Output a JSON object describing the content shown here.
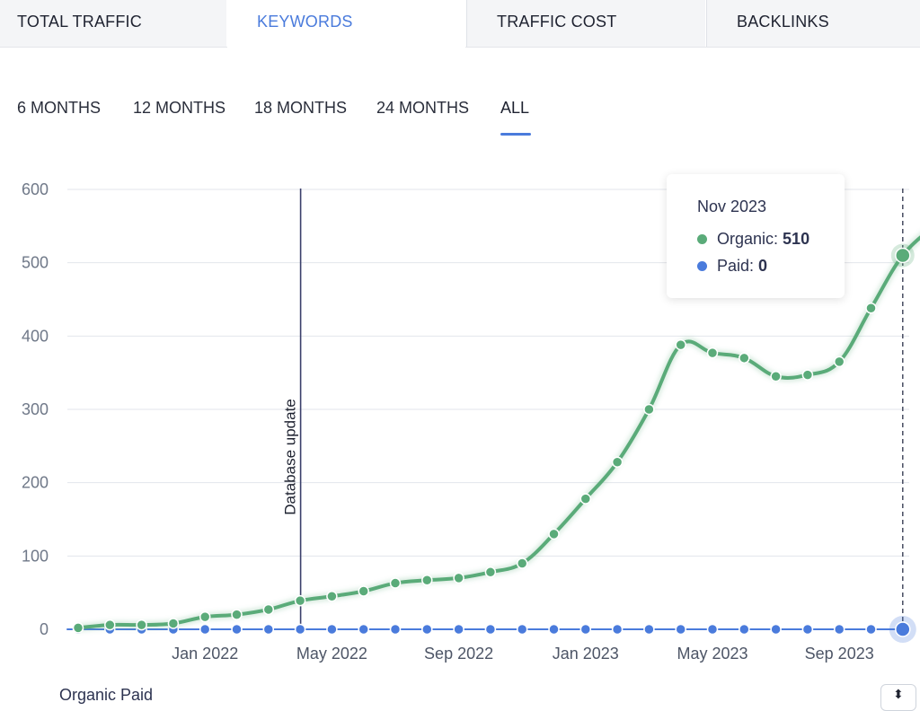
{
  "tabs": [
    {
      "label": "TOTAL TRAFFIC",
      "active": false
    },
    {
      "label": "KEYWORDS",
      "active": true
    },
    {
      "label": "TRAFFIC COST",
      "active": false
    },
    {
      "label": "BACKLINKS",
      "active": false
    }
  ],
  "periods": [
    {
      "label": "6 MONTHS",
      "active": false
    },
    {
      "label": "12 MONTHS",
      "active": false
    },
    {
      "label": "18 MONTHS",
      "active": false
    },
    {
      "label": "24 MONTHS",
      "active": false
    },
    {
      "label": "ALL",
      "active": true
    }
  ],
  "colors": {
    "organic": "#5aab79",
    "paid": "#4a7bdc",
    "accent": "#4a7bdc",
    "annotation": "#3a3f6b"
  },
  "chart_data": {
    "type": "line",
    "ylim": [
      0,
      600
    ],
    "y_ticks": [
      0,
      100,
      200,
      300,
      400,
      500,
      600
    ],
    "x_ticks": [
      "Jan 2022",
      "May 2022",
      "Sep 2022",
      "Jan 2023",
      "May 2023",
      "Sep 2023"
    ],
    "x": [
      "Sep 2021",
      "Oct 2021",
      "Nov 2021",
      "Dec 2021",
      "Jan 2022",
      "Feb 2022",
      "Mar 2022",
      "Apr 2022",
      "May 2022",
      "Jun 2022",
      "Jul 2022",
      "Aug 2022",
      "Sep 2022",
      "Oct 2022",
      "Nov 2022",
      "Dec 2022",
      "Jan 2023",
      "Feb 2023",
      "Mar 2023",
      "Apr 2023",
      "May 2023",
      "Jun 2023",
      "Jul 2023",
      "Aug 2023",
      "Sep 2023",
      "Oct 2023",
      "Nov 2023",
      "Dec 2023"
    ],
    "series": [
      {
        "name": "Organic",
        "values": [
          2,
          6,
          6,
          8,
          17,
          20,
          27,
          39,
          45,
          52,
          63,
          67,
          70,
          78,
          90,
          130,
          178,
          228,
          300,
          388,
          377,
          370,
          345,
          347,
          365,
          438,
          510,
          550
        ]
      },
      {
        "name": "Paid",
        "values": [
          0,
          0,
          0,
          0,
          0,
          0,
          0,
          0,
          0,
          0,
          0,
          0,
          0,
          0,
          0,
          0,
          0,
          0,
          0,
          0,
          0,
          0,
          0,
          0,
          0,
          0,
          0,
          0
        ]
      }
    ],
    "annotations": [
      {
        "x": "Apr 2022",
        "label": "Database update"
      }
    ],
    "grid": true,
    "highlight_index": 26
  },
  "tooltip": {
    "title": "Nov 2023",
    "organic_label": "Organic:",
    "organic_value": "510",
    "paid_label": "Paid:",
    "paid_value": "0"
  },
  "legend_peek": "Organic     Paid",
  "corner_icon": "expand-icon"
}
